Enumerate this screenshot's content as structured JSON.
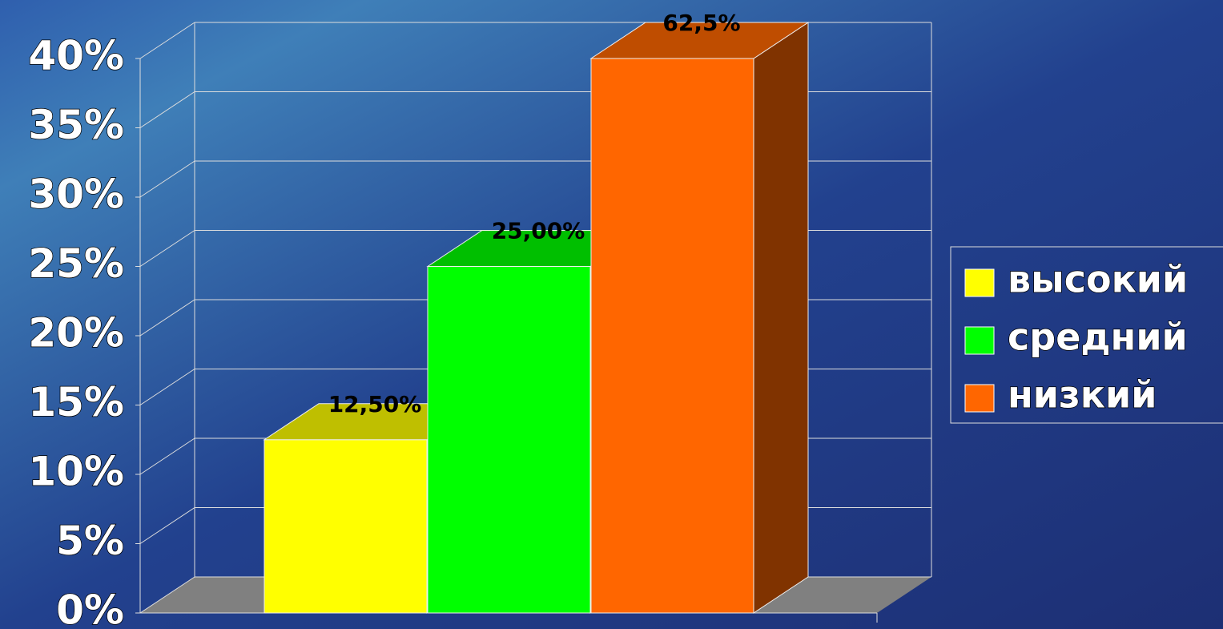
{
  "chart_data": {
    "type": "bar3d",
    "series": [
      {
        "name": "высокий",
        "color": "#ffff00",
        "values": [
          12.5
        ],
        "value_labels": [
          "12,50%"
        ]
      },
      {
        "name": "средний",
        "color": "#00ff00",
        "values": [
          25
        ],
        "value_labels": [
          "25,00%"
        ]
      },
      {
        "name": "низкий",
        "color": "#ff6600",
        "values": [
          62.5
        ],
        "value_labels": [
          "62,5%"
        ]
      }
    ],
    "ylim": [
      0,
      40
    ],
    "yticks": [
      {
        "value": 0,
        "label": "0%"
      },
      {
        "value": 5,
        "label": "5%"
      },
      {
        "value": 10,
        "label": "10%"
      },
      {
        "value": 15,
        "label": "15%"
      },
      {
        "value": 20,
        "label": "20%"
      },
      {
        "value": 25,
        "label": "25%"
      },
      {
        "value": 30,
        "label": "30%"
      },
      {
        "value": 35,
        "label": "35%"
      },
      {
        "value": 40,
        "label": "40%"
      }
    ],
    "grid": true,
    "legend": "right"
  }
}
